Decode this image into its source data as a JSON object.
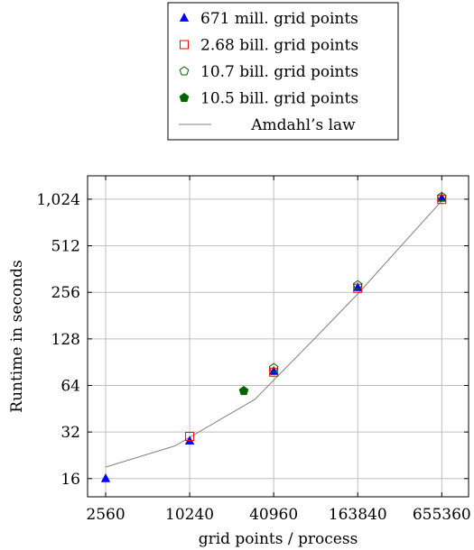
{
  "chart_data": {
    "type": "scatter",
    "xlabel": "grid points / process",
    "ylabel": "Runtime in seconds",
    "x_scale": "log2",
    "y_scale": "log2",
    "xlim": [
      1900,
      1020000
    ],
    "ylim": [
      12.2,
      1450
    ],
    "x_ticks": [
      2560,
      10240,
      40960,
      163840,
      655360
    ],
    "x_tick_labels": [
      "2560",
      "10240",
      "40960",
      "163840",
      "655360"
    ],
    "y_ticks": [
      16,
      32,
      64,
      128,
      256,
      512,
      1024
    ],
    "y_tick_labels": [
      "16",
      "32",
      "64",
      "128",
      "256",
      "512",
      "1,024"
    ],
    "grid": true,
    "legend_position": "top-center",
    "series": [
      {
        "name": "671 mill. grid points",
        "marker": "triangle",
        "color": "#0000ff",
        "points": [
          [
            2560,
            16
          ],
          [
            10240,
            28
          ],
          [
            40960,
            79
          ],
          [
            163840,
            275
          ],
          [
            655360,
            1040
          ]
        ]
      },
      {
        "name": "2.68 bill. grid points",
        "marker": "square-open",
        "color": "#ff0000",
        "points": [
          [
            10240,
            30
          ],
          [
            40960,
            78
          ],
          [
            163840,
            272
          ],
          [
            655360,
            1020
          ]
        ]
      },
      {
        "name": "10.7 bill. grid points",
        "marker": "pentagon-open",
        "color": "#006400",
        "points": [
          [
            40960,
            83
          ],
          [
            163840,
            285
          ],
          [
            655360,
            1060
          ]
        ]
      },
      {
        "name": "10.5 bill. grid points",
        "marker": "pentagon-filled",
        "color": "#006400",
        "points": [
          [
            25000,
            59
          ]
        ]
      },
      {
        "name": "Amdahl’s law",
        "marker": "line",
        "color": "#808080",
        "points": [
          [
            2560,
            19
          ],
          [
            8000,
            26
          ],
          [
            30000,
            52
          ],
          [
            80000,
            128
          ],
          [
            163840,
            250
          ],
          [
            655360,
            1000
          ]
        ]
      }
    ]
  }
}
